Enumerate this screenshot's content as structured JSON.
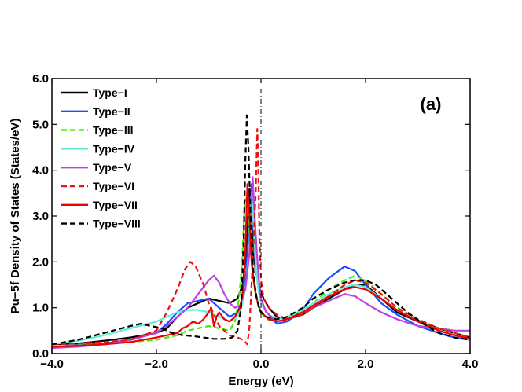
{
  "chart_data": {
    "type": "line",
    "title": "",
    "panel_label": "(a)",
    "xlabel": "Energy (eV)",
    "ylabel": "Pu−5f Density of States (States/eV)",
    "xlim": [
      -4.0,
      4.0
    ],
    "ylim": [
      0.0,
      6.0
    ],
    "xticks": [
      -4.0,
      -2.0,
      0.0,
      2.0,
      4.0
    ],
    "xtick_labels": [
      "−4.0",
      "−2.0",
      "0.0",
      "2.0",
      "4.0"
    ],
    "yticks": [
      0.0,
      1.0,
      2.0,
      3.0,
      4.0,
      5.0,
      6.0
    ],
    "ytick_labels": [
      "0.0",
      "1.0",
      "2.0",
      "3.0",
      "4.0",
      "5.0",
      "6.0"
    ],
    "reference_line_x": 0.0,
    "legend_position": "top-left",
    "series": [
      {
        "name": "Type−I",
        "color": "#000000",
        "dash": "solid",
        "x": [
          -4.0,
          -3.5,
          -3.0,
          -2.5,
          -2.0,
          -1.8,
          -1.6,
          -1.4,
          -1.2,
          -1.0,
          -0.8,
          -0.6,
          -0.45,
          -0.35,
          -0.28,
          -0.22,
          -0.18,
          -0.14,
          -0.1,
          -0.06,
          -0.02,
          0.05,
          0.15,
          0.3,
          0.5,
          0.8,
          1.0,
          1.3,
          1.6,
          1.8,
          2.0,
          2.3,
          2.6,
          3.0,
          3.4,
          3.7,
          4.0
        ],
        "y": [
          0.2,
          0.22,
          0.28,
          0.35,
          0.45,
          0.55,
          0.8,
          1.0,
          1.1,
          1.2,
          1.15,
          1.1,
          1.2,
          1.5,
          2.2,
          3.6,
          3.0,
          2.2,
          1.8,
          1.6,
          1.4,
          1.2,
          1.0,
          0.8,
          0.75,
          0.85,
          1.0,
          1.2,
          1.4,
          1.5,
          1.5,
          1.2,
          0.9,
          0.7,
          0.55,
          0.45,
          0.35
        ]
      },
      {
        "name": "Type−II",
        "color": "#1a4fff",
        "dash": "solid",
        "x": [
          -4.0,
          -3.5,
          -3.0,
          -2.5,
          -2.0,
          -1.8,
          -1.6,
          -1.4,
          -1.2,
          -1.0,
          -0.8,
          -0.6,
          -0.45,
          -0.35,
          -0.28,
          -0.22,
          -0.18,
          -0.14,
          -0.1,
          -0.06,
          -0.02,
          0.05,
          0.15,
          0.3,
          0.5,
          0.8,
          1.0,
          1.3,
          1.6,
          1.8,
          2.0,
          2.3,
          2.6,
          3.0,
          3.4,
          3.7,
          4.0
        ],
        "y": [
          0.15,
          0.18,
          0.22,
          0.3,
          0.45,
          0.65,
          0.9,
          1.1,
          1.15,
          1.2,
          1.0,
          0.8,
          0.9,
          1.2,
          1.8,
          3.0,
          3.7,
          2.6,
          1.9,
          1.5,
          1.2,
          1.0,
          0.85,
          0.65,
          0.7,
          0.95,
          1.3,
          1.65,
          1.9,
          1.8,
          1.5,
          1.1,
          0.85,
          0.6,
          0.45,
          0.35,
          0.3
        ]
      },
      {
        "name": "Type−III",
        "color": "#44ee00",
        "dash": "dashed",
        "x": [
          -4.0,
          -3.5,
          -3.0,
          -2.5,
          -2.0,
          -1.8,
          -1.6,
          -1.4,
          -1.2,
          -1.0,
          -0.8,
          -0.6,
          -0.5,
          -0.42,
          -0.36,
          -0.32,
          -0.28,
          -0.24,
          -0.18,
          -0.12,
          -0.06,
          0.0,
          0.1,
          0.3,
          0.5,
          0.8,
          1.0,
          1.3,
          1.6,
          1.8,
          2.0,
          2.3,
          2.6,
          3.0,
          3.4,
          3.7,
          4.0
        ],
        "y": [
          0.15,
          0.18,
          0.2,
          0.25,
          0.3,
          0.35,
          0.4,
          0.5,
          0.55,
          0.6,
          0.55,
          0.5,
          0.7,
          1.2,
          2.0,
          3.1,
          3.4,
          3.0,
          2.0,
          1.4,
          1.1,
          0.9,
          0.75,
          0.7,
          0.75,
          0.95,
          1.1,
          1.4,
          1.6,
          1.7,
          1.6,
          1.3,
          1.0,
          0.75,
          0.55,
          0.45,
          0.35
        ]
      },
      {
        "name": "Type−IV",
        "color": "#60f0d8",
        "dash": "solid",
        "x": [
          -4.0,
          -3.5,
          -3.0,
          -2.5,
          -2.0,
          -1.8,
          -1.6,
          -1.4,
          -1.2,
          -1.0,
          -0.8,
          -0.6,
          -0.45,
          -0.35,
          -0.28,
          -0.22,
          -0.18,
          -0.14,
          -0.1,
          -0.06,
          -0.02,
          0.05,
          0.15,
          0.3,
          0.5,
          0.8,
          1.0,
          1.3,
          1.6,
          1.8,
          2.0,
          2.3,
          2.6,
          3.0,
          3.4,
          3.7,
          4.0
        ],
        "y": [
          0.2,
          0.28,
          0.4,
          0.55,
          0.7,
          0.8,
          0.9,
          0.95,
          0.95,
          0.9,
          0.8,
          0.7,
          0.8,
          1.1,
          1.6,
          2.4,
          3.5,
          2.8,
          1.9,
          1.5,
          1.2,
          1.0,
          0.85,
          0.75,
          0.8,
          0.95,
          1.1,
          1.3,
          1.45,
          1.5,
          1.45,
          1.2,
          0.95,
          0.7,
          0.5,
          0.4,
          0.3
        ]
      },
      {
        "name": "Type−V",
        "color": "#c040e0",
        "dash": "solid",
        "x": [
          -4.0,
          -3.5,
          -3.0,
          -2.5,
          -2.0,
          -1.8,
          -1.6,
          -1.4,
          -1.2,
          -1.0,
          -0.9,
          -0.8,
          -0.7,
          -0.6,
          -0.5,
          -0.4,
          -0.3,
          -0.22,
          -0.16,
          -0.12,
          -0.08,
          -0.04,
          0.0,
          0.1,
          0.3,
          0.5,
          0.8,
          1.0,
          1.3,
          1.6,
          1.8,
          2.0,
          2.3,
          2.6,
          3.0,
          3.4,
          3.7,
          4.0
        ],
        "y": [
          0.12,
          0.15,
          0.2,
          0.3,
          0.45,
          0.6,
          0.8,
          1.0,
          1.3,
          1.6,
          1.7,
          1.55,
          1.3,
          1.1,
          1.0,
          1.05,
          1.4,
          2.2,
          3.85,
          3.0,
          2.2,
          1.6,
          1.2,
          0.9,
          0.7,
          0.75,
          0.9,
          1.0,
          1.15,
          1.3,
          1.25,
          1.1,
          0.9,
          0.75,
          0.6,
          0.55,
          0.5,
          0.5
        ]
      },
      {
        "name": "Type−VI",
        "color": "#ee1111",
        "dash": "dashed",
        "x": [
          -4.0,
          -3.5,
          -3.0,
          -2.5,
          -2.0,
          -1.8,
          -1.6,
          -1.45,
          -1.35,
          -1.25,
          -1.1,
          -1.0,
          -0.8,
          -0.6,
          -0.45,
          -0.35,
          -0.3,
          -0.26,
          -0.22,
          -0.18,
          -0.14,
          -0.1,
          -0.07,
          -0.05,
          -0.03,
          0.0,
          0.05,
          0.15,
          0.3,
          0.5,
          0.8,
          1.0,
          1.3,
          1.6,
          1.8,
          2.0,
          2.3,
          2.6,
          3.0,
          3.4,
          3.7,
          4.0
        ],
        "y": [
          0.2,
          0.22,
          0.25,
          0.3,
          0.5,
          0.9,
          1.4,
          1.85,
          2.0,
          1.9,
          1.5,
          1.1,
          0.6,
          0.4,
          0.35,
          0.3,
          0.25,
          0.2,
          0.6,
          1.5,
          2.5,
          3.5,
          4.9,
          4.0,
          2.5,
          1.6,
          1.2,
          1.0,
          0.85,
          0.75,
          0.85,
          1.0,
          1.25,
          1.5,
          1.6,
          1.55,
          1.3,
          1.0,
          0.75,
          0.55,
          0.45,
          0.35
        ]
      },
      {
        "name": "Type−VII",
        "color": "#ee0000",
        "dash": "solid",
        "x": [
          -4.0,
          -3.5,
          -3.0,
          -2.5,
          -2.0,
          -1.8,
          -1.6,
          -1.5,
          -1.4,
          -1.3,
          -1.2,
          -1.1,
          -1.0,
          -0.95,
          -0.9,
          -0.85,
          -0.8,
          -0.7,
          -0.6,
          -0.5,
          -0.4,
          -0.34,
          -0.3,
          -0.26,
          -0.22,
          -0.18,
          -0.14,
          -0.1,
          -0.06,
          -0.02,
          0.05,
          0.15,
          0.3,
          0.5,
          0.8,
          1.0,
          1.3,
          1.6,
          1.8,
          2.0,
          2.3,
          2.6,
          3.0,
          3.4,
          3.7,
          4.0
        ],
        "y": [
          0.15,
          0.17,
          0.2,
          0.25,
          0.35,
          0.4,
          0.45,
          0.55,
          0.6,
          0.7,
          0.65,
          0.75,
          0.9,
          1.0,
          0.6,
          0.8,
          0.9,
          0.75,
          0.7,
          0.8,
          1.0,
          1.4,
          2.2,
          3.7,
          3.0,
          2.0,
          1.6,
          1.3,
          1.1,
          0.95,
          0.85,
          0.75,
          0.7,
          0.75,
          0.9,
          1.05,
          1.25,
          1.4,
          1.45,
          1.4,
          1.2,
          0.95,
          0.7,
          0.5,
          0.4,
          0.32
        ]
      },
      {
        "name": "Type−VIII",
        "color": "#000000",
        "dash": "dashed",
        "x": [
          -4.0,
          -3.5,
          -3.0,
          -2.5,
          -2.3,
          -2.1,
          -1.9,
          -1.7,
          -1.5,
          -1.3,
          -1.1,
          -0.9,
          -0.7,
          -0.55,
          -0.45,
          -0.38,
          -0.33,
          -0.3,
          -0.27,
          -0.24,
          -0.2,
          -0.16,
          -0.12,
          -0.08,
          -0.04,
          0.0,
          0.1,
          0.3,
          0.5,
          0.8,
          1.0,
          1.3,
          1.6,
          1.8,
          2.0,
          2.2,
          2.5,
          2.8,
          3.1,
          3.4,
          3.7,
          4.0
        ],
        "y": [
          0.2,
          0.3,
          0.45,
          0.6,
          0.65,
          0.6,
          0.55,
          0.45,
          0.4,
          0.38,
          0.35,
          0.32,
          0.32,
          0.35,
          0.5,
          1.0,
          2.5,
          4.2,
          5.2,
          4.5,
          3.0,
          2.0,
          1.5,
          1.2,
          1.0,
          0.9,
          0.8,
          0.75,
          0.8,
          1.0,
          1.2,
          1.4,
          1.55,
          1.6,
          1.6,
          1.5,
          1.2,
          0.9,
          0.65,
          0.45,
          0.35,
          0.3
        ]
      }
    ]
  }
}
